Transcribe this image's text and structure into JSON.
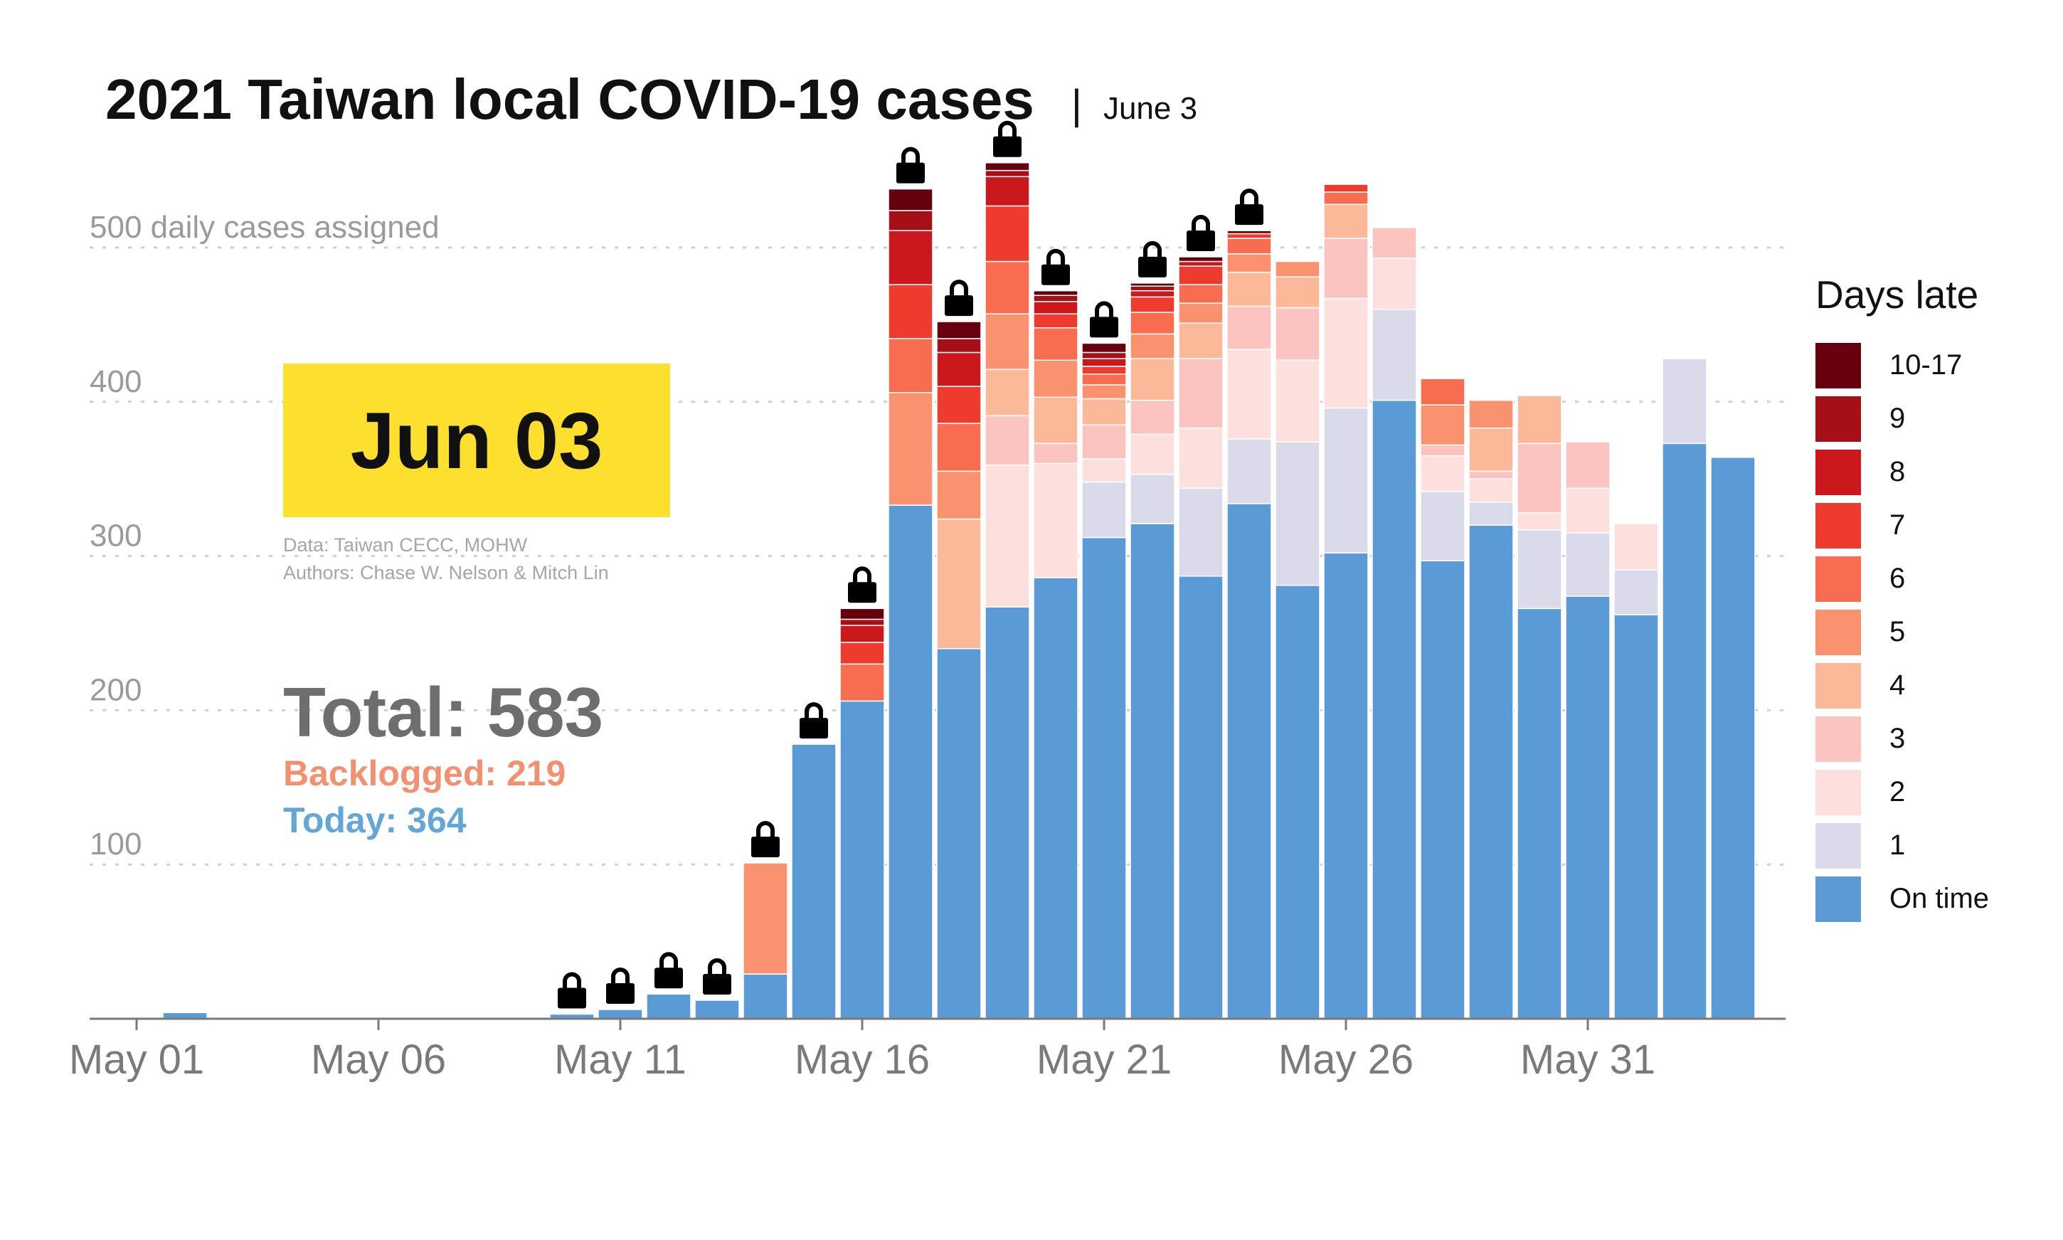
{
  "header": {
    "title": "2021 Taiwan local COVID-19 cases",
    "separator": "|",
    "date": "June 3"
  },
  "date_box": {
    "label": "Jun 03",
    "color": "#FDE02E"
  },
  "credits": {
    "data_line": "Data: Taiwan CECC, MOHW",
    "authors_line": "Authors: Chase W. Nelson & Mitch Lin"
  },
  "totals": {
    "total": "Total: 583",
    "backlogged": "Backlogged: 219",
    "today": "Today: 364"
  },
  "icons": {
    "lock": "lock-icon"
  },
  "colors": {
    "ontime": "#5B9BD5",
    "late1": "#DADAEB",
    "late2": "#FDE0DD",
    "late3": "#FBC4C0",
    "late4": "#FBB99A",
    "late5": "#FA9270",
    "late6": "#F86D4F",
    "late7": "#EE3B2E",
    "late8": "#CB181D",
    "late9": "#A50F15",
    "late10": "#67000D"
  },
  "chart_data": {
    "type": "bar",
    "stacked": true,
    "title": "2021 Taiwan local COVID-19 cases",
    "subtitle": "June 3",
    "ylabel": "daily cases assigned",
    "ylim": [
      0,
      530
    ],
    "y_ticks": [
      100,
      200,
      300,
      400,
      500
    ],
    "y_tick_labels": [
      "100",
      "200",
      "300",
      "400",
      "500 daily cases assigned"
    ],
    "x_tick_labels": [
      "May 01",
      "May 06",
      "May 11",
      "May 16",
      "May 21",
      "May 26",
      "May 31"
    ],
    "grid": "horizontal dotted",
    "legend": {
      "title": "Days late",
      "position": "right",
      "entries": [
        "10-17",
        "9",
        "8",
        "7",
        "6",
        "5",
        "4",
        "3",
        "2",
        "1",
        "On time"
      ]
    },
    "categories": [
      "May 01",
      "May 02",
      "May 03",
      "May 04",
      "May 05",
      "May 06",
      "May 07",
      "May 08",
      "May 09",
      "May 10",
      "May 11",
      "May 12",
      "May 13",
      "May 14",
      "May 15",
      "May 16",
      "May 17",
      "May 18",
      "May 19",
      "May 20",
      "May 21",
      "May 22",
      "May 23",
      "May 24",
      "May 25",
      "May 26",
      "May 27",
      "May 28",
      "May 29",
      "May 30",
      "May 31",
      "Jun 01",
      "Jun 02",
      "Jun 03"
    ],
    "series": [
      {
        "name": "On time",
        "values": [
          0,
          4,
          1,
          1,
          0,
          0,
          0,
          1,
          0,
          3,
          6,
          16,
          12,
          29,
          178,
          206,
          333,
          240,
          267,
          286,
          312,
          321,
          287,
          334,
          281,
          302,
          401,
          297,
          320,
          266,
          274,
          262,
          373,
          364
        ]
      },
      {
        "name": "1",
        "values": [
          0,
          0,
          0,
          0,
          0,
          0,
          0,
          0,
          0,
          0,
          0,
          0,
          0,
          0,
          0,
          0,
          0,
          0,
          0,
          0,
          36,
          32,
          57,
          42,
          93,
          94,
          59,
          45,
          15,
          51,
          41,
          29,
          55,
          0
        ]
      },
      {
        "name": "2",
        "values": [
          0,
          0,
          0,
          0,
          0,
          0,
          0,
          0,
          0,
          0,
          0,
          0,
          0,
          0,
          0,
          0,
          0,
          0,
          92,
          74,
          15,
          26,
          39,
          58,
          53,
          71,
          33,
          23,
          15,
          11,
          29,
          30,
          0,
          0
        ]
      },
      {
        "name": "3",
        "values": [
          0,
          0,
          0,
          0,
          0,
          0,
          0,
          0,
          0,
          0,
          0,
          0,
          0,
          0,
          0,
          0,
          0,
          0,
          32,
          13,
          22,
          22,
          45,
          28,
          34,
          39,
          20,
          7,
          5,
          45,
          30,
          0,
          0,
          0
        ]
      },
      {
        "name": "4",
        "values": [
          0,
          0,
          0,
          0,
          0,
          0,
          0,
          0,
          0,
          0,
          0,
          0,
          0,
          0,
          0,
          0,
          0,
          84,
          30,
          30,
          17,
          27,
          23,
          22,
          20,
          22,
          0,
          0,
          28,
          31,
          0,
          0,
          0,
          0
        ]
      },
      {
        "name": "5",
        "values": [
          0,
          0,
          0,
          0,
          0,
          0,
          0,
          0,
          0,
          0,
          0,
          0,
          0,
          72,
          0,
          0,
          73,
          31,
          36,
          24,
          9,
          16,
          13,
          12,
          10,
          0,
          0,
          26,
          18,
          0,
          0,
          0,
          0,
          0
        ]
      },
      {
        "name": "6",
        "values": [
          0,
          0,
          0,
          0,
          0,
          0,
          0,
          0,
          0,
          0,
          0,
          0,
          0,
          0,
          0,
          24,
          35,
          31,
          34,
          21,
          7,
          14,
          12,
          10,
          0,
          8,
          0,
          17,
          0,
          0,
          0,
          0,
          0,
          0
        ]
      },
      {
        "name": "7",
        "values": [
          0,
          0,
          0,
          0,
          0,
          0,
          0,
          0,
          0,
          0,
          0,
          0,
          0,
          0,
          0,
          14,
          35,
          24,
          36,
          9,
          5,
          10,
          12,
          3,
          0,
          5,
          0,
          0,
          0,
          0,
          0,
          0,
          0,
          0
        ]
      },
      {
        "name": "8",
        "values": [
          0,
          0,
          0,
          0,
          0,
          0,
          0,
          0,
          0,
          0,
          0,
          0,
          0,
          0,
          0,
          11,
          35,
          22,
          19,
          8,
          5,
          4,
          3,
          0,
          0,
          0,
          0,
          0,
          0,
          0,
          0,
          0,
          0,
          0
        ]
      },
      {
        "name": "9",
        "values": [
          0,
          0,
          0,
          0,
          0,
          0,
          0,
          0,
          0,
          0,
          0,
          0,
          0,
          0,
          0,
          4,
          13,
          9,
          4,
          4,
          4,
          3,
          0,
          0,
          0,
          0,
          0,
          0,
          0,
          0,
          0,
          0,
          0,
          0
        ]
      },
      {
        "name": "10-17",
        "values": [
          0,
          0,
          0,
          0,
          0,
          0,
          0,
          0,
          0,
          0,
          0,
          0,
          0,
          0,
          0,
          7,
          14,
          11,
          5,
          3,
          6,
          2,
          3,
          2,
          0,
          0,
          0,
          0,
          0,
          0,
          0,
          0,
          0,
          0
        ]
      }
    ],
    "locked_days": [
      "May 10",
      "May 11",
      "May 12",
      "May 13",
      "May 14",
      "May 15",
      "May 16",
      "May 17",
      "May 18",
      "May 19",
      "May 20",
      "May 21",
      "May 22",
      "May 23",
      "May 24"
    ]
  }
}
